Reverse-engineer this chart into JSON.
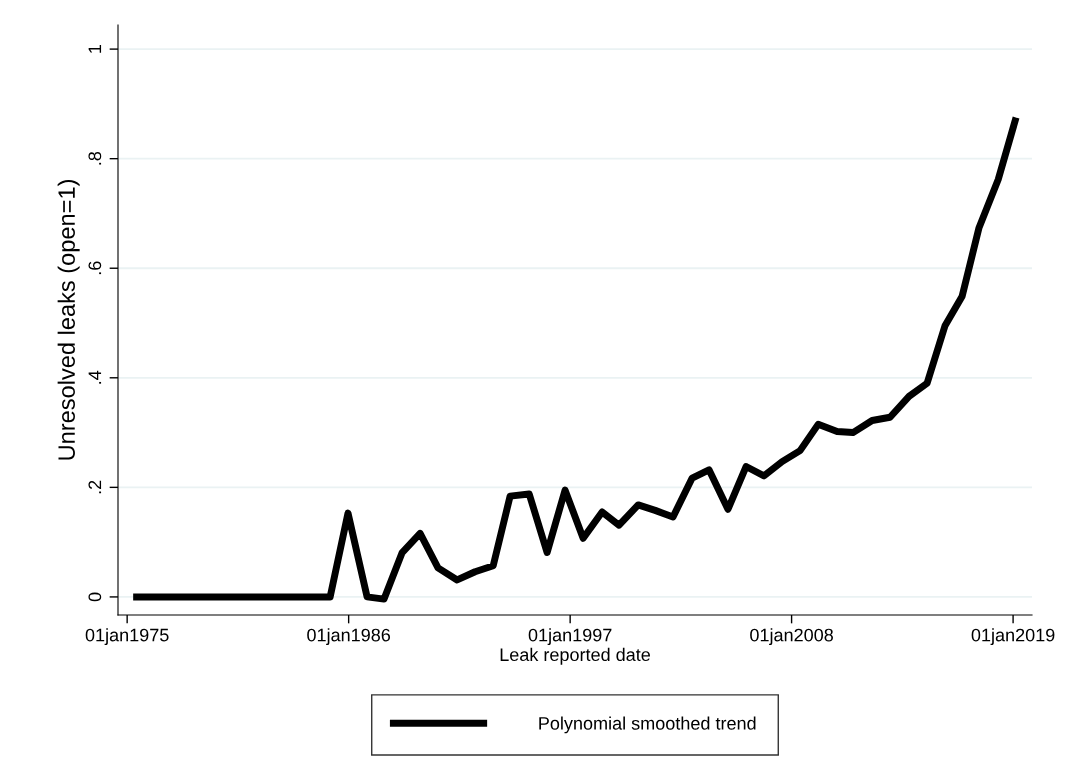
{
  "chart_data": {
    "type": "line",
    "xlabel": "Leak reported date",
    "ylabel": "Unresolved leaks (open=1)",
    "grid": "y",
    "legend": "bottom",
    "marker": "none",
    "line_style": "solid",
    "xlim": [
      "1974-07-19",
      "2019-12-10"
    ],
    "ylim": [
      -0.033,
      1.044
    ],
    "xticks": [
      {
        "value": "1975-01-01",
        "label": "01jan1975"
      },
      {
        "value": "1986-01-01",
        "label": "01jan1986"
      },
      {
        "value": "1997-01-01",
        "label": "01jan1997"
      },
      {
        "value": "2008-01-01",
        "label": "01jan2008"
      },
      {
        "value": "2019-01-01",
        "label": "01jan2019"
      }
    ],
    "yticks": [
      {
        "value": 0,
        "label": "0"
      },
      {
        "value": 0.2,
        "label": ".2"
      },
      {
        "value": 0.4,
        "label": ".4"
      },
      {
        "value": 0.6,
        "label": ".6"
      },
      {
        "value": 0.8,
        "label": ".8"
      },
      {
        "value": 1,
        "label": "1"
      }
    ],
    "series": [
      {
        "name": "Polynomial smoothed trend",
        "color": "#000000",
        "x": [
          "1975-04-20",
          "1985-01-30",
          "1985-12-20",
          "1986-12-02",
          "1987-10-05",
          "1988-08-29",
          "1989-07-20",
          "1990-06-10",
          "1991-05-23",
          "1992-04-13",
          "1993-03-07",
          "1994-01-08",
          "1994-12-20",
          "1995-11-10",
          "1996-10-01",
          "1997-08-25",
          "1998-08-04",
          "1999-06-07",
          "2000-05-19",
          "2001-03-23",
          "2002-02-10",
          "2003-01-23",
          "2003-11-25",
          "2004-11-03",
          "2005-09-27",
          "2006-08-19",
          "2007-07-13",
          "2008-06-03",
          "2009-04-27",
          "2010-04-06",
          "2011-01-19",
          "2012-01-01",
          "2012-11-21",
          "2013-10-31",
          "2014-09-24",
          "2015-08-15",
          "2016-06-21",
          "2017-04-23",
          "2018-04-06",
          "2019-02-24"
        ],
        "values": [
          0,
          0,
          0.153,
          0,
          -0.004,
          0.081,
          0.116,
          0.053,
          0.031,
          0.046,
          0.057,
          0.184,
          0.188,
          0.081,
          0.195,
          0.107,
          0.155,
          0.131,
          0.168,
          0.158,
          0.146,
          0.217,
          0.232,
          0.16,
          0.238,
          0.221,
          0.247,
          0.267,
          0.315,
          0.302,
          0.3,
          0.322,
          0.328,
          0.366,
          0.39,
          0.495,
          0.549,
          0.674,
          0.762,
          0.875
        ]
      }
    ]
  }
}
